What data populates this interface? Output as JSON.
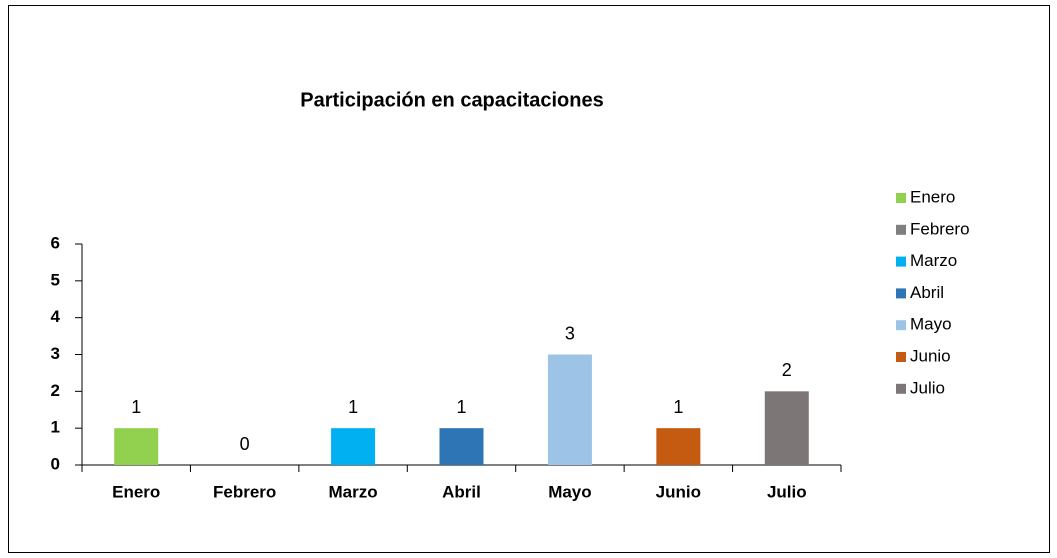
{
  "chart_data": {
    "type": "bar",
    "title": "Participación en capacitaciones",
    "categories": [
      "Enero",
      "Febrero",
      "Marzo",
      "Abril",
      "Mayo",
      "Junio",
      "Julio"
    ],
    "values": [
      1,
      0,
      1,
      1,
      3,
      1,
      2
    ],
    "colors": [
      "#92d050",
      "#7f7f7f",
      "#00b0f0",
      "#2e75b6",
      "#9dc3e6",
      "#c55a11",
      "#7c7776"
    ],
    "ylim": [
      0,
      6
    ],
    "yticks": [
      0,
      1,
      2,
      3,
      4,
      5,
      6
    ],
    "grid": false,
    "legend": "right"
  }
}
